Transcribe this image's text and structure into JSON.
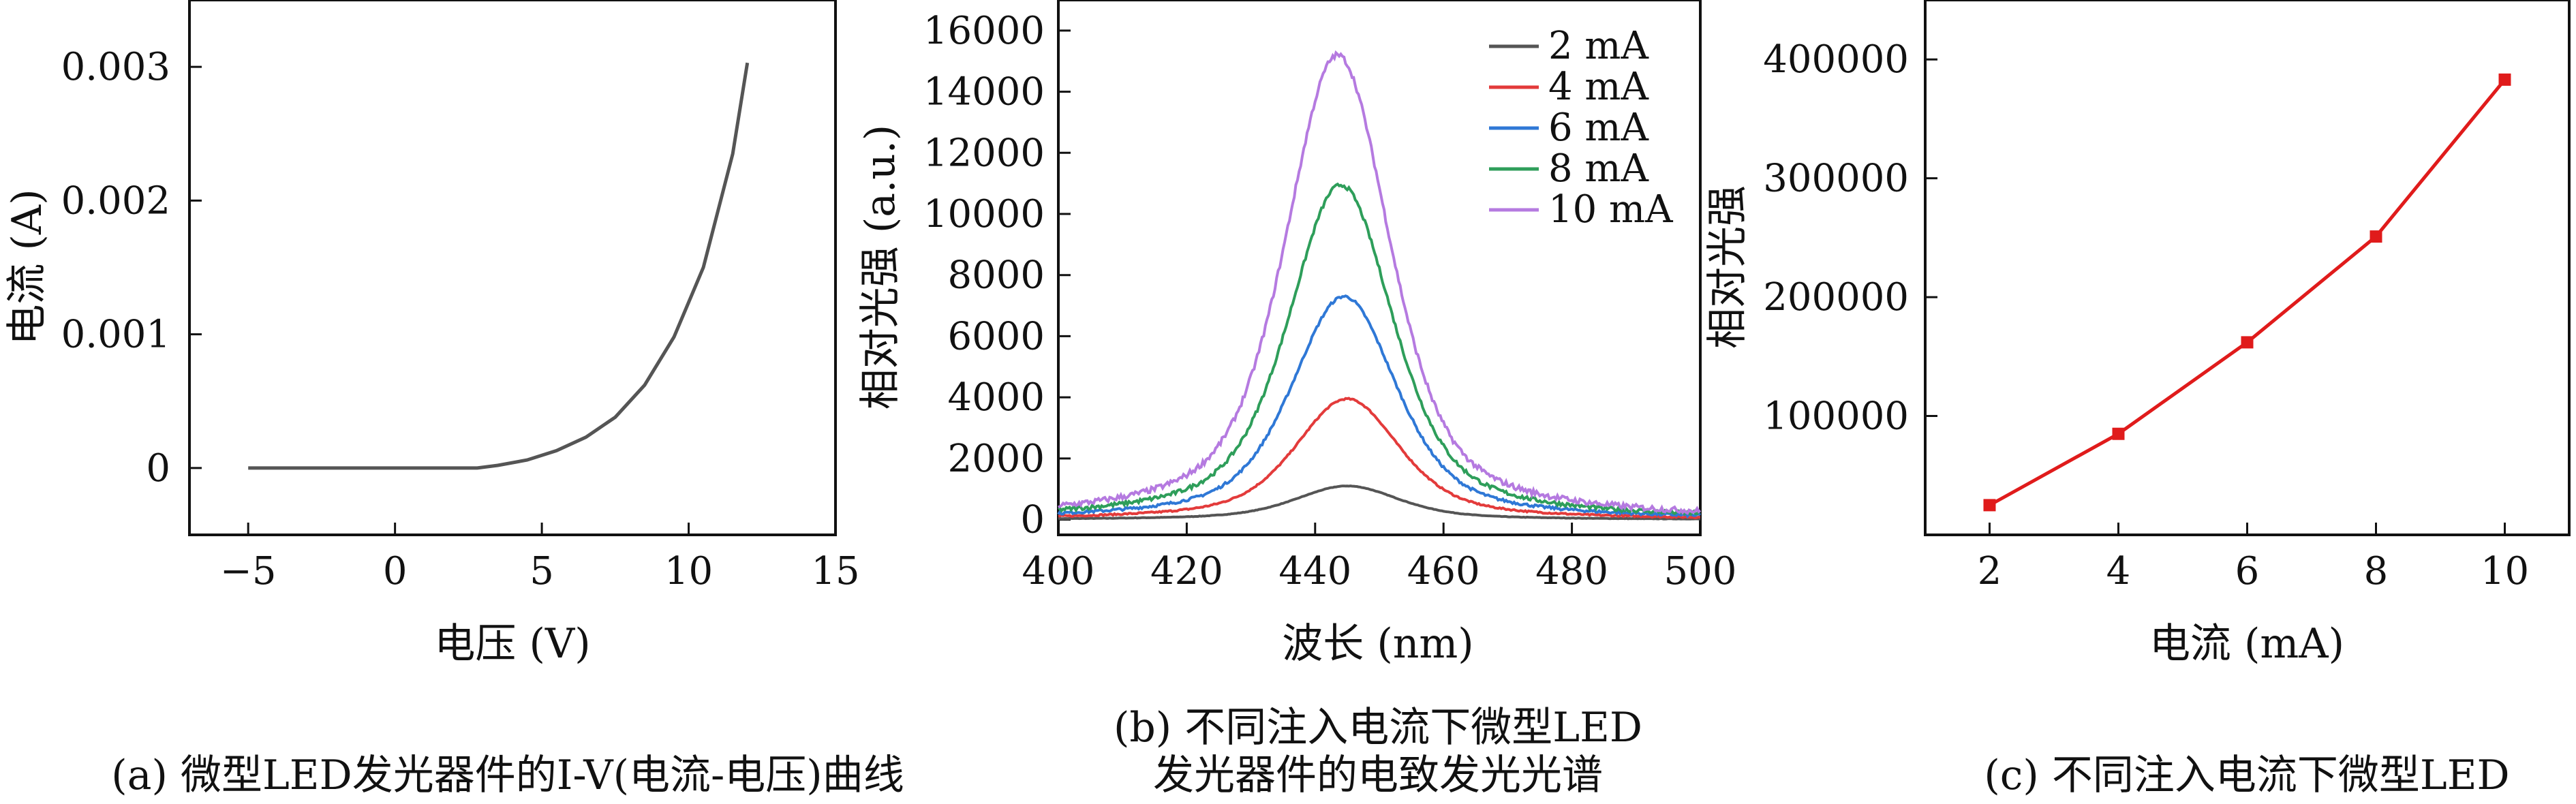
{
  "chart_data": [
    {
      "type": "line",
      "panel": "a",
      "xlabel": "电压 (V)",
      "ylabel": "电流 (A)",
      "xlim": [
        -7,
        15
      ],
      "ylim": [
        -0.0005,
        0.0035
      ],
      "x_ticks": [
        -5,
        0,
        5,
        10,
        15
      ],
      "y_ticks": [
        0,
        0.001,
        0.002,
        0.003
      ],
      "x_tick_labels": [
        "−5",
        "0",
        "5",
        "10",
        "15"
      ],
      "y_tick_labels": [
        "0",
        "0.001",
        "0.002",
        "0.003"
      ],
      "caption": "(a) 微型LED发光器件的I-V(电流-电压)曲线",
      "colors": {
        "line": "#555555"
      },
      "series": [
        {
          "x": [
            -5,
            0,
            2,
            2.8,
            3.5,
            4.5,
            5.5,
            6.5,
            7.5,
            8.5,
            9.5,
            10.5,
            11.5,
            12
          ],
          "values": [
            0,
            0,
            0,
            0,
            2e-05,
            6e-05,
            0.00013,
            0.00023,
            0.00038,
            0.00062,
            0.00098,
            0.0015,
            0.00235,
            0.00303
          ]
        }
      ]
    },
    {
      "type": "line",
      "panel": "b",
      "xlabel": "波长 (nm)",
      "ylabel": "相对光强 (a.u.)",
      "xlim": [
        400,
        500
      ],
      "ylim": [
        -500,
        17000
      ],
      "x_ticks": [
        400,
        420,
        440,
        460,
        480,
        500
      ],
      "y_ticks": [
        0,
        2000,
        4000,
        6000,
        8000,
        10000,
        12000,
        14000,
        16000
      ],
      "caption_lines": [
        "(b) 不同注入电流下微型LED",
        "发光器件的电致发光光谱"
      ],
      "legend_position": "top-right",
      "series": [
        {
          "name": "2 mA",
          "color": "#555555",
          "peak_x": 445,
          "peak_y": 1100
        },
        {
          "name": "4 mA",
          "color": "#e33b3b",
          "peak_x": 445,
          "peak_y": 3950
        },
        {
          "name": "6 mA",
          "color": "#2f78d6",
          "peak_x": 444.5,
          "peak_y": 7300
        },
        {
          "name": "8 mA",
          "color": "#2e9e5a",
          "peak_x": 444,
          "peak_y": 10950
        },
        {
          "name": "10 mA",
          "color": "#b57ae0",
          "peak_x": 443.5,
          "peak_y": 15200
        }
      ]
    },
    {
      "type": "line",
      "panel": "c",
      "xlabel": "电流 (mA)",
      "ylabel": "相对光强",
      "xlim": [
        1,
        11
      ],
      "ylim": [
        0,
        450000
      ],
      "x_ticks": [
        2,
        4,
        6,
        8,
        10
      ],
      "y_ticks": [
        100000,
        200000,
        300000,
        400000
      ],
      "caption": "(c) 不同注入电流下微型LED",
      "colors": {
        "line": "#e01b1b"
      },
      "series": [
        {
          "x": [
            2,
            4,
            6,
            8,
            10
          ],
          "values": [
            25000,
            85000,
            162000,
            251000,
            383000
          ]
        }
      ]
    }
  ]
}
